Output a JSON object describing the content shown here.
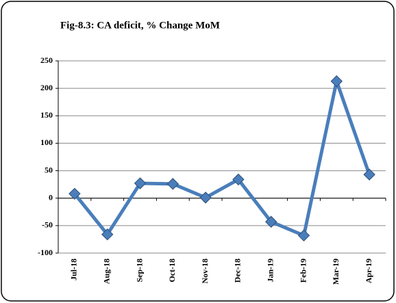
{
  "chart_data": {
    "type": "line",
    "title": "Fig-8.3: CA deficit, % Change MoM",
    "categories": [
      "Jul-18",
      "Aug-18",
      "Sep-18",
      "Oct-18",
      "Nov-18",
      "Dec-18",
      "Jan-19",
      "Feb-19",
      "Mar-19",
      "Apr-19"
    ],
    "series": [
      {
        "name": "CA deficit",
        "color": "#4a7ebb",
        "values": [
          8,
          -66,
          27,
          26,
          1,
          34,
          -43,
          -68,
          213,
          43
        ]
      }
    ],
    "ylim": [
      -100,
      250
    ],
    "yticks": [
      -100,
      -50,
      0,
      50,
      100,
      150,
      200,
      250
    ],
    "grid": true
  }
}
